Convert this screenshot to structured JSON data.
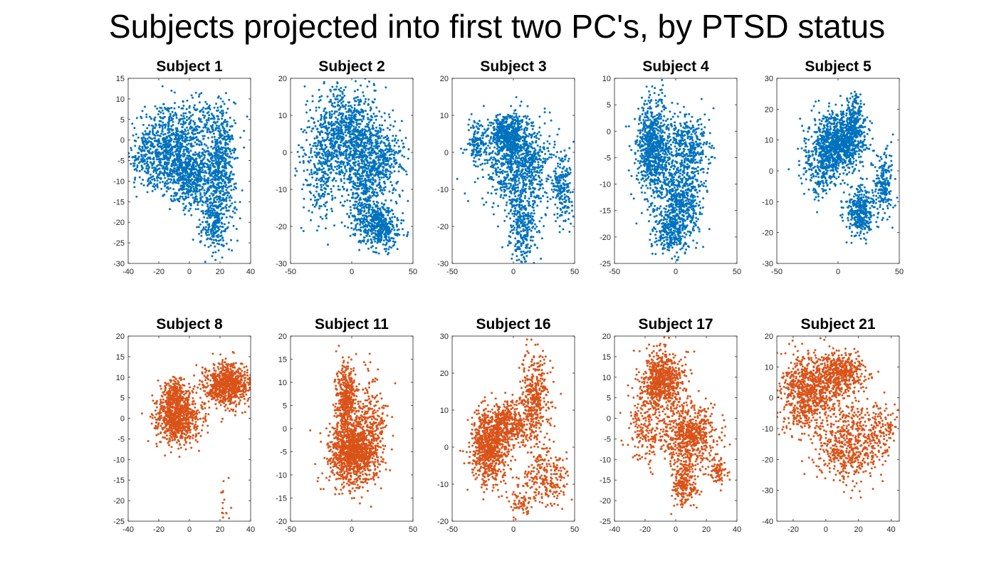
{
  "figure_title": "Subjects projected into first two PC's, by PTSD status",
  "colors": {
    "group1": "#0072BD",
    "group2": "#D95319",
    "axis": "#262626",
    "background": "#ffffff"
  },
  "chart_data": [
    {
      "type": "scatter",
      "title": "Subject 1",
      "group": "group1",
      "xlim": [
        -40,
        40
      ],
      "ylim": [
        -30,
        15
      ],
      "xticks": [
        -40,
        -20,
        0,
        20,
        40
      ],
      "yticks": [
        -30,
        -25,
        -20,
        -15,
        -10,
        -5,
        0,
        5,
        10,
        15
      ],
      "clusters": [
        {
          "cx": -12,
          "cy": -2,
          "sx": 10,
          "sy": 5,
          "n": 700
        },
        {
          "cx": 0,
          "cy": -9,
          "sx": 8,
          "sy": 3.5,
          "n": 500
        },
        {
          "cx": 20,
          "cy": -6,
          "sx": 5,
          "sy": 7,
          "n": 550
        },
        {
          "cx": 16,
          "cy": -20,
          "sx": 5,
          "sy": 4,
          "n": 250
        },
        {
          "cx": -28,
          "cy": -4,
          "sx": 5,
          "sy": 4,
          "n": 150
        },
        {
          "cx": 8,
          "cy": 5,
          "sx": 10,
          "sy": 3,
          "n": 150
        }
      ]
    },
    {
      "type": "scatter",
      "title": "Subject 2",
      "group": "group1",
      "xlim": [
        -50,
        50
      ],
      "ylim": [
        -30,
        20
      ],
      "xticks": [
        -50,
        0,
        50
      ],
      "yticks": [
        -30,
        -20,
        -10,
        0,
        10,
        20
      ],
      "clusters": [
        {
          "cx": -5,
          "cy": 5,
          "sx": 14,
          "sy": 6,
          "n": 900
        },
        {
          "cx": 10,
          "cy": -8,
          "sx": 9,
          "sy": 6,
          "n": 450
        },
        {
          "cx": 22,
          "cy": -20,
          "sx": 9,
          "sy": 3,
          "n": 450
        },
        {
          "cx": 25,
          "cy": -2,
          "sx": 10,
          "sy": 4,
          "n": 300
        },
        {
          "cx": -25,
          "cy": -5,
          "sx": 8,
          "sy": 8,
          "n": 250
        }
      ]
    },
    {
      "type": "scatter",
      "title": "Subject 3",
      "group": "group1",
      "xlim": [
        -50,
        50
      ],
      "ylim": [
        -30,
        20
      ],
      "xticks": [
        -50,
        0,
        50
      ],
      "yticks": [
        -30,
        -20,
        -10,
        0,
        10,
        20
      ],
      "clusters": [
        {
          "cx": -5,
          "cy": 5,
          "sx": 8,
          "sy": 2.5,
          "n": 450
        },
        {
          "cx": 5,
          "cy": -3,
          "sx": 14,
          "sy": 6,
          "n": 900
        },
        {
          "cx": 8,
          "cy": -20,
          "sx": 6,
          "sy": 5,
          "n": 300
        },
        {
          "cx": 40,
          "cy": -10,
          "sx": 4,
          "sy": 5,
          "n": 200
        },
        {
          "cx": -30,
          "cy": 3,
          "sx": 4,
          "sy": 3,
          "n": 120
        }
      ]
    },
    {
      "type": "scatter",
      "title": "Subject 4",
      "group": "group1",
      "xlim": [
        -50,
        50
      ],
      "ylim": [
        -25,
        10
      ],
      "xticks": [
        -50,
        0,
        50
      ],
      "yticks": [
        -25,
        -20,
        -15,
        -10,
        -5,
        0,
        5,
        10
      ],
      "clusters": [
        {
          "cx": -18,
          "cy": -3,
          "sx": 7,
          "sy": 4.5,
          "n": 800
        },
        {
          "cx": 10,
          "cy": -3,
          "sx": 9,
          "sy": 3,
          "n": 350
        },
        {
          "cx": 5,
          "cy": -13,
          "sx": 9,
          "sy": 4,
          "n": 600
        },
        {
          "cx": -5,
          "cy": -19,
          "sx": 7,
          "sy": 2,
          "n": 250
        }
      ]
    },
    {
      "type": "scatter",
      "title": "Subject 5",
      "group": "group1",
      "xlim": [
        -50,
        50
      ],
      "ylim": [
        -30,
        30
      ],
      "xticks": [
        -50,
        0,
        50
      ],
      "yticks": [
        -30,
        -20,
        -10,
        0,
        10,
        20,
        30
      ],
      "clusters": [
        {
          "cx": 0,
          "cy": 9,
          "sx": 11,
          "sy": 4.5,
          "n": 1000
        },
        {
          "cx": 13,
          "cy": 17,
          "sx": 4,
          "sy": 4,
          "n": 200
        },
        {
          "cx": 18,
          "cy": -13,
          "sx": 6,
          "sy": 4,
          "n": 350
        },
        {
          "cx": 37,
          "cy": -4,
          "sx": 4,
          "sy": 5,
          "n": 200
        },
        {
          "cx": -15,
          "cy": 0,
          "sx": 7,
          "sy": 4,
          "n": 200
        }
      ]
    },
    {
      "type": "scatter",
      "title": "Subject 8",
      "group": "group2",
      "xlim": [
        -40,
        40
      ],
      "ylim": [
        -25,
        20
      ],
      "xticks": [
        -40,
        -20,
        0,
        20,
        40
      ],
      "yticks": [
        -25,
        -20,
        -15,
        -10,
        -5,
        0,
        5,
        10,
        15,
        20
      ],
      "clusters": [
        {
          "cx": -8,
          "cy": 0,
          "sx": 7,
          "sy": 3,
          "n": 750
        },
        {
          "cx": 25,
          "cy": 8,
          "sx": 8,
          "sy": 2.5,
          "n": 800
        },
        {
          "cx": -9,
          "cy": 6,
          "sx": 4,
          "sy": 2,
          "n": 200
        },
        {
          "cx": 23,
          "cy": -21,
          "sx": 1.5,
          "sy": 3,
          "n": 15
        }
      ]
    },
    {
      "type": "scatter",
      "title": "Subject 11",
      "group": "group2",
      "xlim": [
        -50,
        50
      ],
      "ylim": [
        -20,
        20
      ],
      "xticks": [
        -50,
        0,
        50
      ],
      "yticks": [
        -20,
        -15,
        -10,
        -5,
        0,
        5,
        10,
        15,
        20
      ],
      "clusters": [
        {
          "cx": 0,
          "cy": -5,
          "sx": 10,
          "sy": 3.5,
          "n": 1000
        },
        {
          "cx": -5,
          "cy": 6,
          "sx": 4,
          "sy": 4,
          "n": 450
        },
        {
          "cx": 15,
          "cy": 0,
          "sx": 7,
          "sy": 6,
          "n": 300
        }
      ]
    },
    {
      "type": "scatter",
      "title": "Subject 16",
      "group": "group2",
      "xlim": [
        -50,
        50
      ],
      "ylim": [
        -20,
        30
      ],
      "xticks": [
        -50,
        0,
        50
      ],
      "yticks": [
        -20,
        -10,
        0,
        10,
        20,
        30
      ],
      "clusters": [
        {
          "cx": -20,
          "cy": 0,
          "sx": 7,
          "sy": 5,
          "n": 750
        },
        {
          "cx": -5,
          "cy": 6,
          "sx": 8,
          "sy": 3,
          "n": 400
        },
        {
          "cx": 18,
          "cy": 13,
          "sx": 6,
          "sy": 6,
          "n": 400
        },
        {
          "cx": 25,
          "cy": -8,
          "sx": 10,
          "sy": 4,
          "n": 250
        },
        {
          "cx": 5,
          "cy": -15,
          "sx": 4,
          "sy": 2,
          "n": 60
        }
      ]
    },
    {
      "type": "scatter",
      "title": "Subject 17",
      "group": "group2",
      "xlim": [
        -40,
        40
      ],
      "ylim": [
        -25,
        20
      ],
      "xticks": [
        -40,
        -20,
        0,
        20,
        40
      ],
      "yticks": [
        -25,
        -20,
        -15,
        -10,
        -5,
        0,
        5,
        10,
        15,
        20
      ],
      "clusters": [
        {
          "cx": -8,
          "cy": 9,
          "sx": 7,
          "sy": 3.5,
          "n": 700
        },
        {
          "cx": 8,
          "cy": -4,
          "sx": 9,
          "sy": 4,
          "n": 700
        },
        {
          "cx": -20,
          "cy": -2,
          "sx": 6,
          "sy": 5,
          "n": 200
        },
        {
          "cx": 5,
          "cy": -16,
          "sx": 4,
          "sy": 2.5,
          "n": 200
        },
        {
          "cx": 28,
          "cy": -13,
          "sx": 3,
          "sy": 1.5,
          "n": 80
        }
      ]
    },
    {
      "type": "scatter",
      "title": "Subject 21",
      "group": "group2",
      "xlim": [
        -30,
        45
      ],
      "ylim": [
        -40,
        20
      ],
      "xticks": [
        -20,
        0,
        20,
        40
      ],
      "yticks": [
        -40,
        -30,
        -20,
        -10,
        0,
        10,
        20
      ],
      "clusters": [
        {
          "cx": -10,
          "cy": 2,
          "sx": 9,
          "sy": 6,
          "n": 800
        },
        {
          "cx": 10,
          "cy": 8,
          "sx": 8,
          "sy": 3.5,
          "n": 450
        },
        {
          "cx": 15,
          "cy": -15,
          "sx": 10,
          "sy": 6,
          "n": 550
        },
        {
          "cx": 35,
          "cy": -10,
          "sx": 5,
          "sy": 4,
          "n": 120
        }
      ]
    }
  ]
}
